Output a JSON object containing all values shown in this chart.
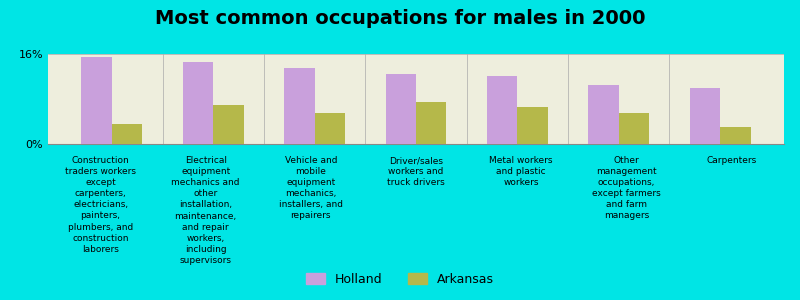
{
  "title": "Most common occupations for males in 2000",
  "categories": [
    "Construction\ntraders workers\nexcept\ncarpenters,\nelectricians,\npainters,\nplumbers, and\nconstruction\nlaborers",
    "Electrical\nequipment\nmechanics and\nother\ninstallation,\nmaintenance,\nand repair\nworkers,\nincluding\nsupervisors",
    "Vehicle and\nmobile\nequipment\nmechanics,\ninstallers, and\nrepairers",
    "Driver/sales\nworkers and\ntruck drivers",
    "Metal workers\nand plastic\nworkers",
    "Other\nmanagement\noccupations,\nexcept farmers\nand farm\nmanagers",
    "Carpenters"
  ],
  "holland_values": [
    15.5,
    14.5,
    13.5,
    12.5,
    12.0,
    10.5,
    10.0
  ],
  "arkansas_values": [
    3.5,
    7.0,
    5.5,
    7.5,
    6.5,
    5.5,
    3.0
  ],
  "holland_color": "#c9a0dc",
  "arkansas_color": "#b5b84a",
  "background_color": "#00e5e5",
  "plot_bg_color": "#eeeedd",
  "ylim": [
    0,
    16
  ],
  "ytick_labels": [
    "0%",
    "16%"
  ],
  "legend_holland": "Holland",
  "legend_arkansas": "Arkansas",
  "title_fontsize": 14,
  "label_fontsize": 6.5
}
